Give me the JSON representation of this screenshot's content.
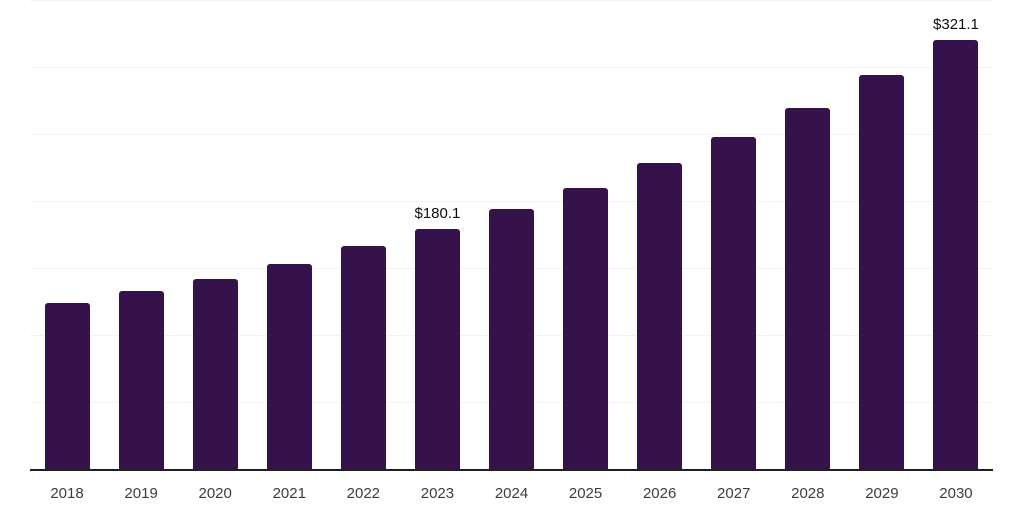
{
  "chart_data": {
    "type": "bar",
    "title": "",
    "xlabel": "",
    "ylabel": "",
    "categories": [
      "2018",
      "2019",
      "2020",
      "2021",
      "2022",
      "2023",
      "2024",
      "2025",
      "2026",
      "2027",
      "2028",
      "2029",
      "2030"
    ],
    "values": [
      124.9,
      133.7,
      142.2,
      154.1,
      167.0,
      180.1,
      194.9,
      210.8,
      229.1,
      248.6,
      270.1,
      294.8,
      321.1
    ],
    "annotations": [
      {
        "category": "2023",
        "text": "$180.1"
      },
      {
        "category": "2030",
        "text": "$321.1"
      }
    ],
    "ylim": [
      0,
      350
    ],
    "grid_interval": 50,
    "grid": "horizontal-only",
    "legend": "none",
    "y_tick_labels_visible": false,
    "colors": {
      "bar": "#36124b",
      "gridline": "#f2f2f2",
      "axis_line": "#1f1f1f",
      "tick_label": "#3d3d3d",
      "value_label": "#0d0d0d",
      "background": "#ffffff"
    }
  }
}
